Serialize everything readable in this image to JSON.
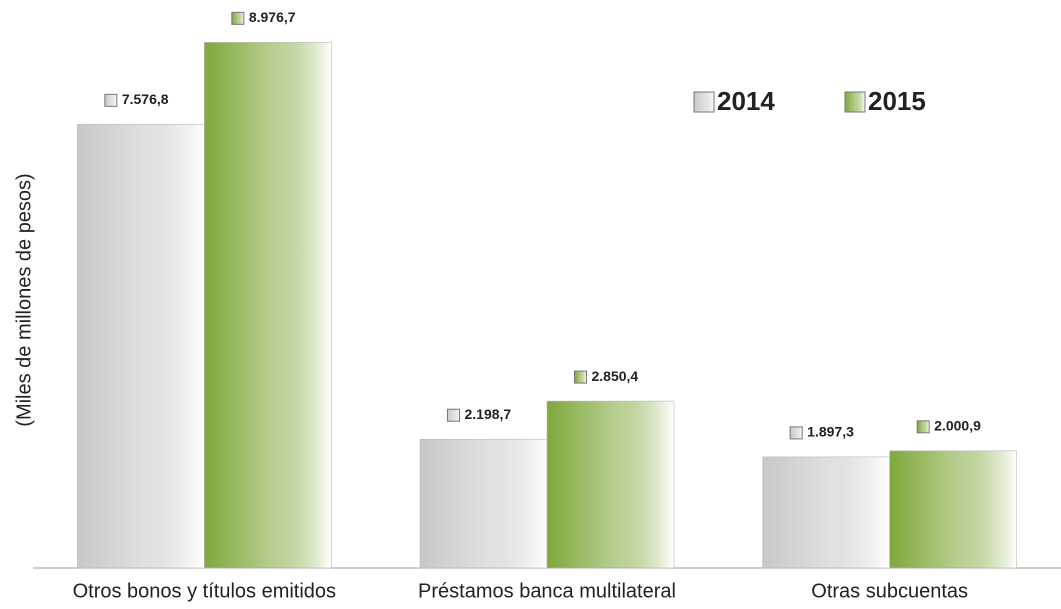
{
  "chart_data": {
    "type": "bar",
    "y_label": "(Miles de millones de pesos)",
    "categories": [
      "Otros bonos y títulos emitidos",
      "Préstamos banca multilateral",
      "Otras subcuentas"
    ],
    "series": [
      {
        "name": "2014",
        "color": "#c8c8c8",
        "values": [
          7576.8,
          2198.7,
          1897.3
        ],
        "value_labels": [
          "7.576,8",
          "2.198,7",
          "1.897,3"
        ]
      },
      {
        "name": "2015",
        "color": "#7fa83a",
        "values": [
          8976.7,
          2850.4,
          2000.9
        ],
        "value_labels": [
          "8.976,7",
          "2.850,4",
          "2.000,9"
        ]
      }
    ],
    "ylim": [
      0,
      9700
    ],
    "legend": "upper right"
  }
}
